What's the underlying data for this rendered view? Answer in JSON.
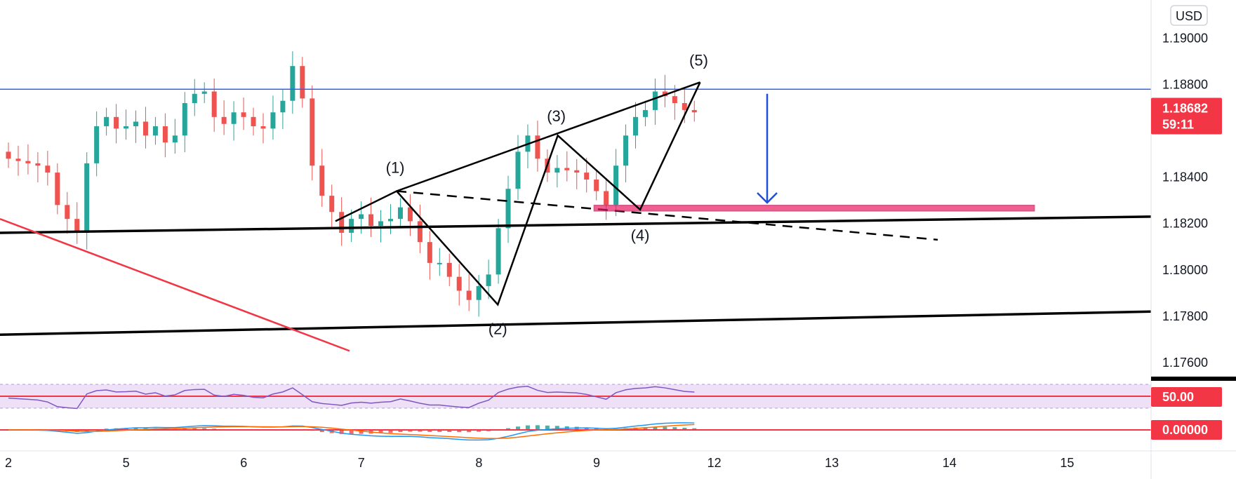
{
  "chart_data": {
    "type": "candlestick",
    "currency": "USD",
    "price_ticks": [
      1.19,
      1.188,
      1.186,
      1.184,
      1.182,
      1.18,
      1.178,
      1.176
    ],
    "price_tick_labels": [
      "1.19000",
      "1.18800",
      "",
      "1.18400",
      "1.18200",
      "1.18000",
      "1.17800",
      "1.17600"
    ],
    "ylim": [
      1.1753,
      1.1915
    ],
    "time_ticks": [
      {
        "label": "2",
        "t": 0
      },
      {
        "label": "5",
        "t": 1
      },
      {
        "label": "6",
        "t": 2
      },
      {
        "label": "7",
        "t": 3
      },
      {
        "label": "8",
        "t": 4
      },
      {
        "label": "9",
        "t": 5
      },
      {
        "label": "12",
        "t": 6
      },
      {
        "label": "13",
        "t": 7
      },
      {
        "label": "14",
        "t": 8
      },
      {
        "label": "15",
        "t": 9
      }
    ],
    "last_price": {
      "value": 1.18682,
      "label": "1.18682",
      "countdown": "59:11"
    },
    "resistance_level": 1.1878,
    "waves": [
      {
        "label": "(1)",
        "t": 3.3,
        "price": 1.1834
      },
      {
        "label": "(2)",
        "t": 4.16,
        "price": 1.1785
      },
      {
        "label": "(3)",
        "t": 4.67,
        "price": 1.1858
      },
      {
        "label": "(4)",
        "t": 5.37,
        "price": 1.1826
      },
      {
        "label": "(5)",
        "t": 5.88,
        "price": 1.1881
      }
    ],
    "candles_close": [
      1.1848,
      1.1847,
      1.1846,
      1.1845,
      1.1842,
      1.1828,
      1.1822,
      1.1816,
      1.1846,
      1.1862,
      1.1866,
      1.1861,
      1.1862,
      1.1864,
      1.1858,
      1.1862,
      1.1855,
      1.1858,
      1.1872,
      1.1876,
      1.1877,
      1.1866,
      1.1863,
      1.1868,
      1.1866,
      1.1862,
      1.1861,
      1.1868,
      1.1873,
      1.1888,
      1.1874,
      1.1845,
      1.1832,
      1.1825,
      1.1816,
      1.1822,
      1.1824,
      1.1819,
      1.1821,
      1.1822,
      1.1827,
      1.1821,
      1.1812,
      1.1803,
      1.1803,
      1.1797,
      1.1791,
      1.1787,
      1.1793,
      1.1798,
      1.1818,
      1.1835,
      1.1851,
      1.1858,
      1.1848,
      1.1842,
      1.1844,
      1.1843,
      1.1842,
      1.1839,
      1.1834,
      1.1828,
      1.1845,
      1.1858,
      1.1866,
      1.1869,
      1.1877,
      1.1875,
      1.1872,
      1.1869,
      1.1868
    ],
    "candle_step_t": 0.0833,
    "rsi_label": "50.00",
    "macd_label": "0.00000",
    "colors": {
      "up": "#26a69a",
      "down": "#ef5350",
      "resistance": "#2962ff",
      "arrow": "#1e4fd8",
      "zone": "#e91e63",
      "trend": "#f23645",
      "rsi": "#7e57c2",
      "macd": "#2196f3",
      "signal": "#ff6d00"
    }
  }
}
